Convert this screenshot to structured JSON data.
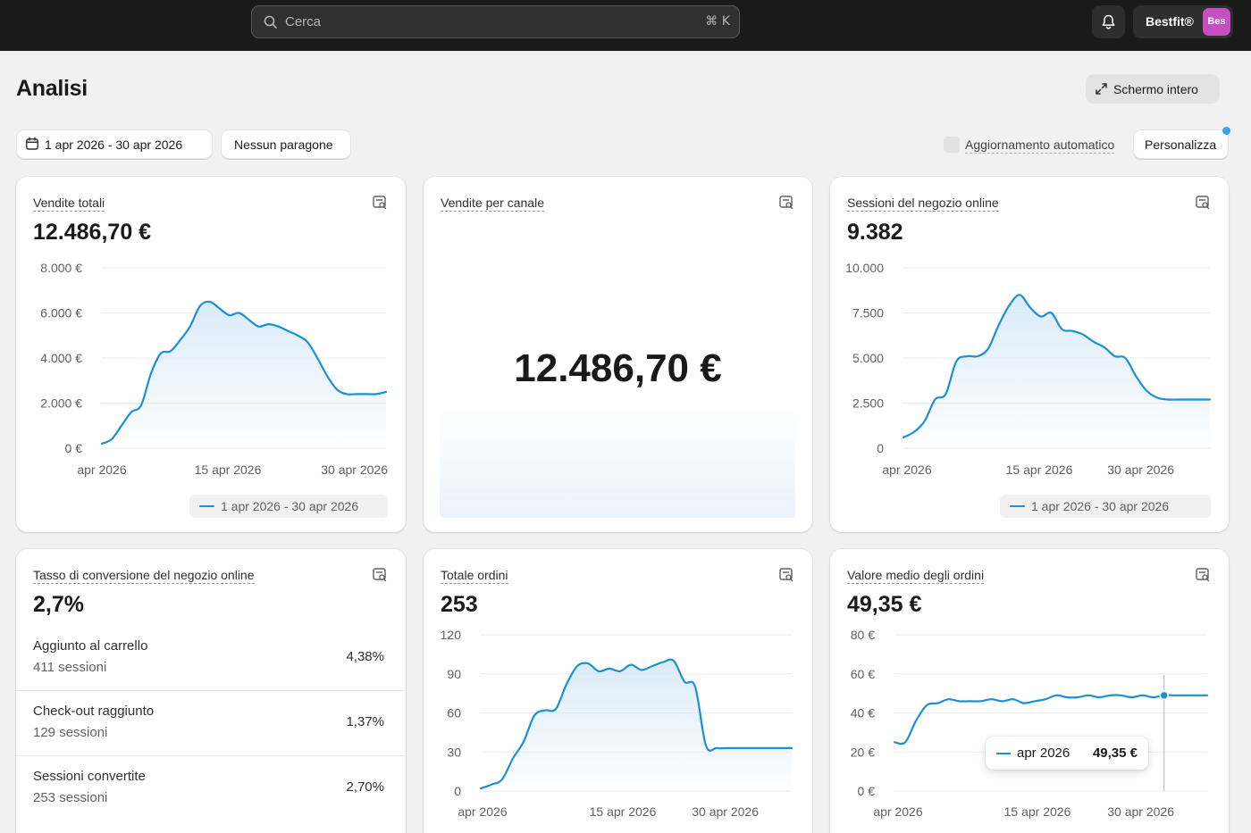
{
  "header": {
    "search_placeholder": "Cerca",
    "search_shortcut": "⌘ K",
    "store_name": "Bestfit®",
    "avatar_initials": "Bes"
  },
  "page": {
    "title": "Analisi",
    "fullscreen_label": "Schermo intero",
    "date_range_label": "1 apr 2026 - 30 apr 2026",
    "comparison_label": "Nessun paragone",
    "auto_refresh_label": "Aggiornamento automatico",
    "customize_label": "Personalizza"
  },
  "cards": {
    "total_sales": {
      "title": "Vendite totali",
      "value": "12.486,70 €",
      "legend": "1 apr 2026 - 30 apr 2026"
    },
    "sales_by_channel": {
      "title": "Vendite per canale",
      "value": "12.486,70 €"
    },
    "sessions": {
      "title": "Sessioni del negozio online",
      "value": "9.382",
      "legend": "1 apr 2026 - 30 apr 2026"
    },
    "conversion": {
      "title": "Tasso di conversione del negozio online",
      "value": "2,7%",
      "rows": [
        {
          "label": "Aggiunto al carrello",
          "sessions": "411 sessioni",
          "pct": "4,38%"
        },
        {
          "label": "Check-out raggiunto",
          "sessions": "129 sessioni",
          "pct": "1,37%"
        },
        {
          "label": "Sessioni convertite",
          "sessions": "253 sessioni",
          "pct": "2,70%"
        }
      ]
    },
    "orders": {
      "title": "Totale ordini",
      "value": "253"
    },
    "aov": {
      "title": "Valore medio degli ordini",
      "value": "49,35 €",
      "tooltip_label": "apr 2026",
      "tooltip_value": "49,35 €"
    }
  },
  "colors": {
    "line": "#1a90d6",
    "fill_top": "#d7e9f8",
    "grid": "#ebebeb"
  },
  "chart_data": [
    {
      "id": "total_sales",
      "type": "area",
      "title": "Vendite totali",
      "yticks": [
        "8.000 €",
        "6.000 €",
        "4.000 €",
        "2.000 €",
        "0 €"
      ],
      "ylim": [
        0,
        8000
      ],
      "xticks": [
        "apr 2026",
        "15 apr 2026",
        "30 apr 2026"
      ],
      "series": [
        {
          "name": "1 apr 2026 - 30 apr 2026",
          "x": [
            1,
            2,
            3,
            4,
            5,
            6,
            7,
            8,
            9,
            10,
            11,
            12,
            13,
            14,
            15,
            16,
            17,
            18,
            19,
            20,
            21,
            22,
            23,
            24,
            25,
            26,
            27,
            28,
            29,
            30
          ],
          "values": [
            200,
            400,
            1000,
            1600,
            1900,
            3300,
            4200,
            4300,
            4800,
            5400,
            6300,
            6500,
            6200,
            5900,
            6000,
            5700,
            5400,
            5500,
            5400,
            5200,
            5000,
            4700,
            4000,
            3200,
            2600,
            2400,
            2400,
            2400,
            2400,
            2500
          ]
        }
      ]
    },
    {
      "id": "sessions",
      "type": "area",
      "title": "Sessioni del negozio online",
      "yticks": [
        "10.000",
        "7.500",
        "5.000",
        "2.500",
        "0"
      ],
      "ylim": [
        0,
        10000
      ],
      "xticks": [
        "apr 2026",
        "15 apr 2026",
        "30 apr 2026"
      ],
      "series": [
        {
          "name": "1 apr 2026 - 30 apr 2026",
          "x": [
            1,
            2,
            3,
            4,
            5,
            6,
            7,
            8,
            9,
            10,
            11,
            12,
            13,
            14,
            15,
            16,
            17,
            18,
            19,
            20,
            21,
            22,
            23,
            24,
            25,
            26,
            27,
            28,
            29,
            30
          ],
          "values": [
            600,
            900,
            1500,
            2700,
            3000,
            4800,
            5100,
            5100,
            5500,
            6800,
            7900,
            8500,
            7800,
            7300,
            7500,
            6600,
            6500,
            6300,
            5900,
            5600,
            5100,
            5000,
            4000,
            3200,
            2800,
            2700,
            2700,
            2700,
            2700,
            2700
          ]
        }
      ]
    },
    {
      "id": "orders",
      "type": "area",
      "title": "Totale ordini",
      "yticks": [
        "120",
        "90",
        "60",
        "30",
        "0"
      ],
      "ylim": [
        0,
        120
      ],
      "xticks": [
        "apr 2026",
        "15 apr 2026",
        "30 apr 2026"
      ],
      "series": [
        {
          "name": "Totale ordini",
          "x": [
            1,
            2,
            3,
            4,
            5,
            6,
            7,
            8,
            9,
            10,
            11,
            12,
            13,
            14,
            15,
            16,
            17,
            18,
            19,
            20,
            21,
            22,
            23,
            24,
            25,
            26,
            27,
            28,
            29,
            30
          ],
          "values": [
            2,
            5,
            9,
            25,
            38,
            58,
            62,
            63,
            82,
            96,
            98,
            92,
            94,
            92,
            97,
            93,
            96,
            99,
            100,
            84,
            80,
            35,
            33,
            33,
            33,
            33,
            33,
            33,
            33,
            33
          ]
        }
      ]
    },
    {
      "id": "aov",
      "type": "line",
      "title": "Valore medio degli ordini",
      "yticks": [
        "80 €",
        "60 €",
        "40 €",
        "20 €",
        "0 €"
      ],
      "ylim": [
        0,
        80
      ],
      "xticks": [
        "apr 2026",
        "15 apr 2026",
        "30 apr 2026"
      ],
      "series": [
        {
          "name": "apr 2026",
          "x": [
            1,
            2,
            3,
            4,
            5,
            6,
            7,
            8,
            9,
            10,
            11,
            12,
            13,
            14,
            15,
            16,
            17,
            18,
            19,
            20,
            21,
            22,
            23,
            24,
            25,
            26,
            27,
            28,
            29,
            30
          ],
          "values": [
            25,
            25,
            36,
            44,
            45,
            47,
            46,
            46,
            46,
            47,
            46,
            47,
            45,
            46,
            47,
            49,
            48,
            48,
            49,
            48,
            49,
            49,
            48,
            49,
            48,
            49,
            49,
            49,
            49,
            49
          ]
        }
      ]
    }
  ]
}
